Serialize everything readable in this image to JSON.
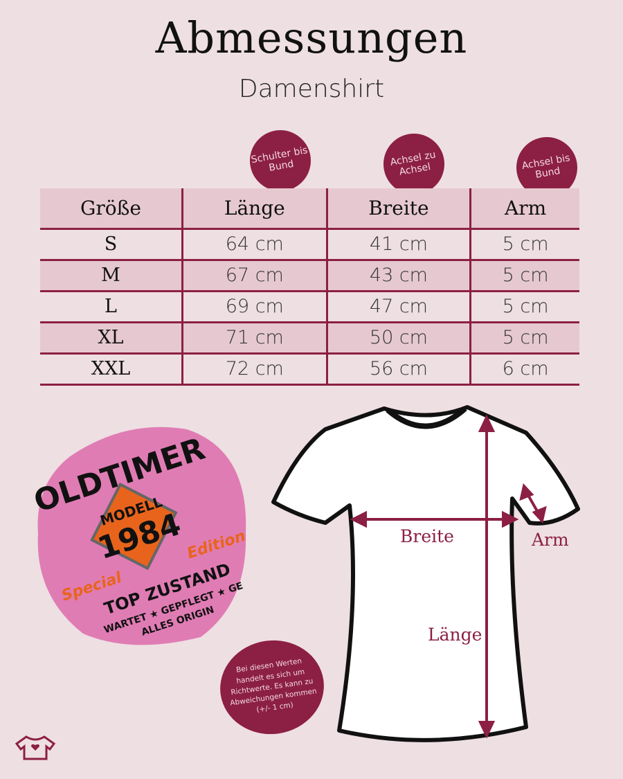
{
  "header": {
    "title": "Abmessungen",
    "subtitle": "Damenshirt"
  },
  "badges": [
    {
      "text": "Schulter bis Bund"
    },
    {
      "text": "Achsel zu Achsel"
    },
    {
      "text": "Achsel bis Bund"
    }
  ],
  "table": {
    "headers": [
      "Größe",
      "Länge",
      "Breite",
      "Arm"
    ],
    "rows": [
      [
        "S",
        "64 cm",
        "41 cm",
        "5 cm"
      ],
      [
        "M",
        "67 cm",
        "43 cm",
        "5 cm"
      ],
      [
        "L",
        "69 cm",
        "47 cm",
        "5 cm"
      ],
      [
        "XL",
        "71 cm",
        "50 cm",
        "5 cm"
      ],
      [
        "XXL",
        "72 cm",
        "56 cm",
        "6 cm"
      ]
    ]
  },
  "diagram": {
    "breite": "Breite",
    "arm": "Arm",
    "laenge": "Länge"
  },
  "design": {
    "line1": "OLDTIMER",
    "line2": "MODELL",
    "line3": "1984",
    "line4": "Special",
    "line5": "Edition",
    "line6": "TOP ZUSTAND",
    "line7": "WARTET ★ GEPFLEGT ★ GE",
    "line8": "ALLES ORIGIN"
  },
  "note": "Bei diesen Werten handelt es sich um Richtwerte. Es kann zu Abweichungen kommen (+/- 1 cm)",
  "colors": {
    "accent": "#8c1f44",
    "background": "#eedfe2",
    "row_shade": "#e6c9d0",
    "design_pink": "#e07cb4",
    "design_orange": "#e8641c"
  }
}
